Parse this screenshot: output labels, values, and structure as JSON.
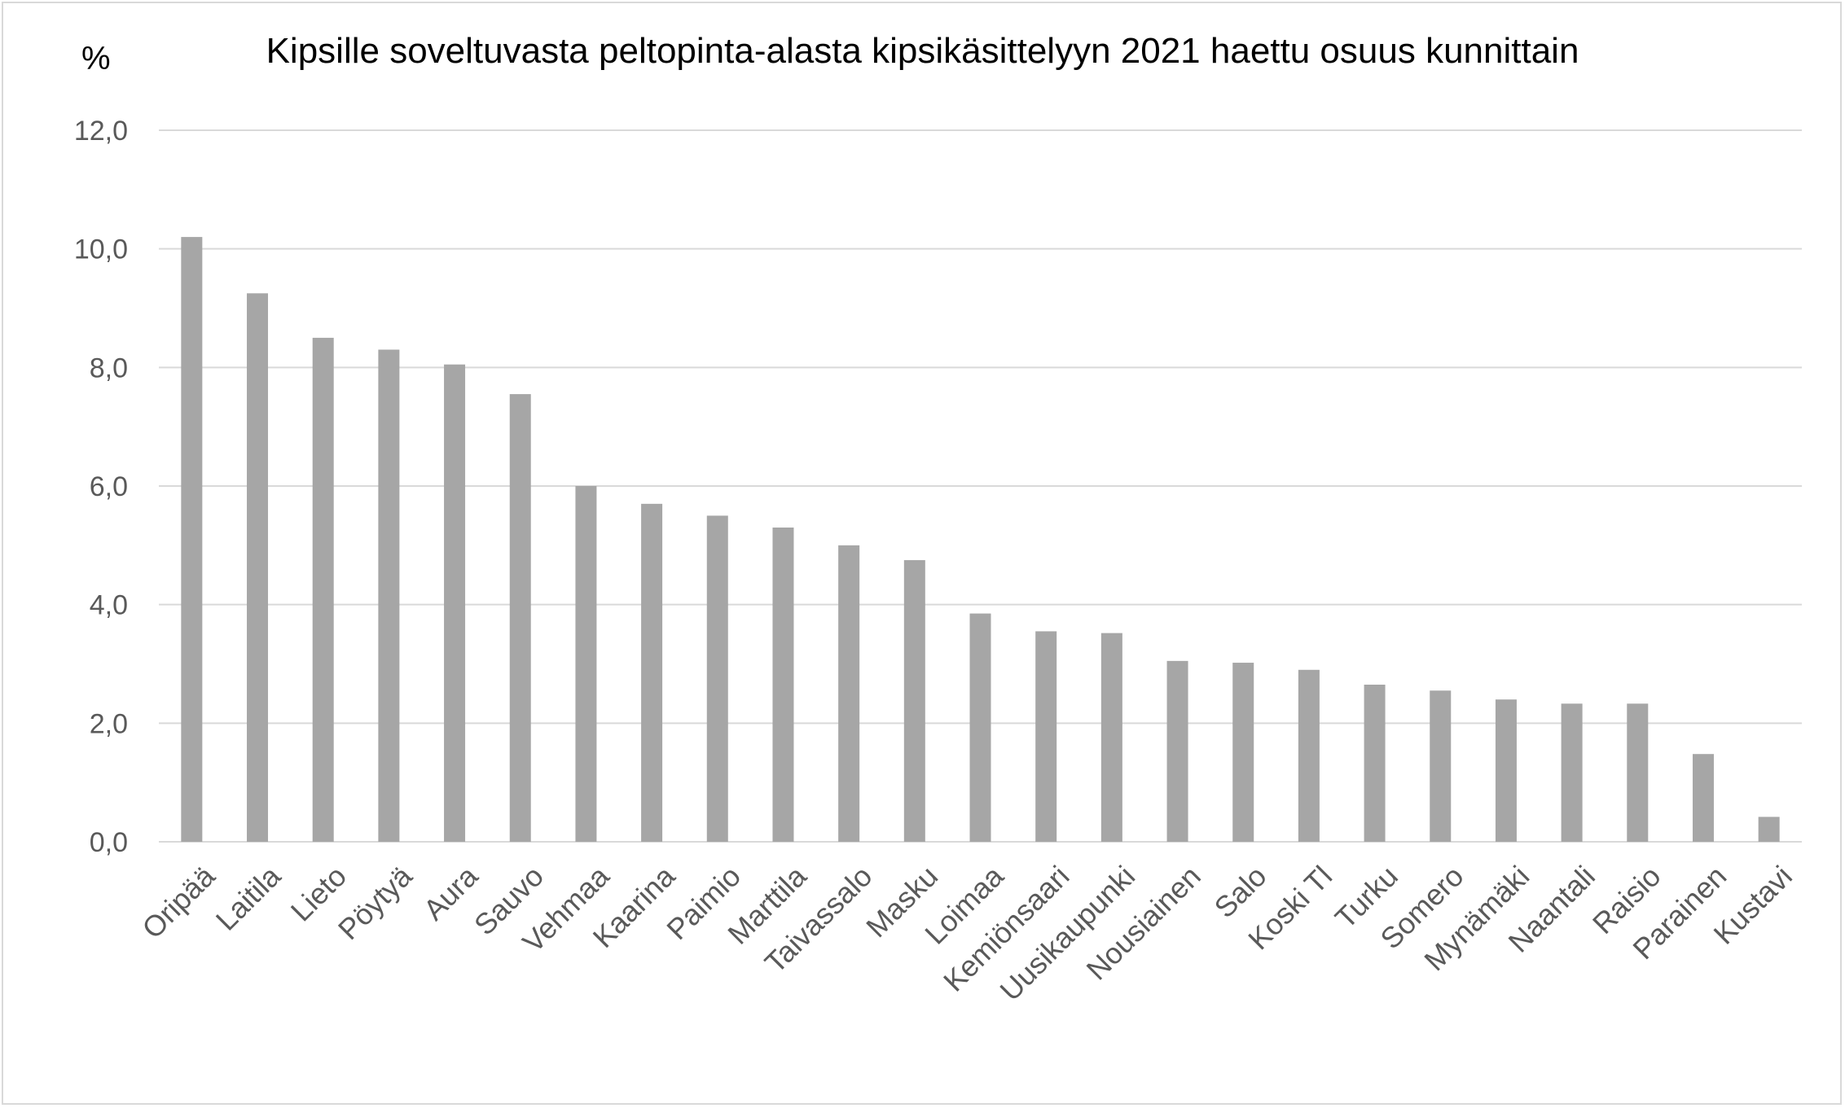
{
  "chart_data": {
    "type": "bar",
    "title": "Kipsille soveltuvasta peltopinta-alasta kipsikäsittelyyn 2021 haettu osuus kunnittain",
    "ylabel": "%",
    "xlabel": "",
    "ylim": [
      0,
      12
    ],
    "yticks": [
      "0,0",
      "2,0",
      "4,0",
      "6,0",
      "8,0",
      "10,0",
      "12,0"
    ],
    "grid": true,
    "legend": "none",
    "bar_color": "#a6a6a6",
    "grid_color": "#d9d9d9",
    "categories": [
      "Oripää",
      "Laitila",
      "Lieto",
      "Pöytyä",
      "Aura",
      "Sauvo",
      "Vehmaa",
      "Kaarina",
      "Paimio",
      "Marttila",
      "Taivassalo",
      "Masku",
      "Loimaa",
      "Kemiönsaari",
      "Uusikaupunki",
      "Nousiainen",
      "Salo",
      "Koski Tl",
      "Turku",
      "Somero",
      "Mynämäki",
      "Naantali",
      "Raisio",
      "Parainen",
      "Kustavi"
    ],
    "values": [
      10.2,
      9.25,
      8.5,
      8.3,
      8.05,
      7.55,
      6.0,
      5.7,
      5.5,
      5.3,
      5.0,
      4.75,
      3.85,
      3.55,
      3.52,
      3.05,
      3.02,
      2.9,
      2.65,
      2.55,
      2.4,
      2.33,
      2.33,
      1.48,
      0.42
    ]
  }
}
